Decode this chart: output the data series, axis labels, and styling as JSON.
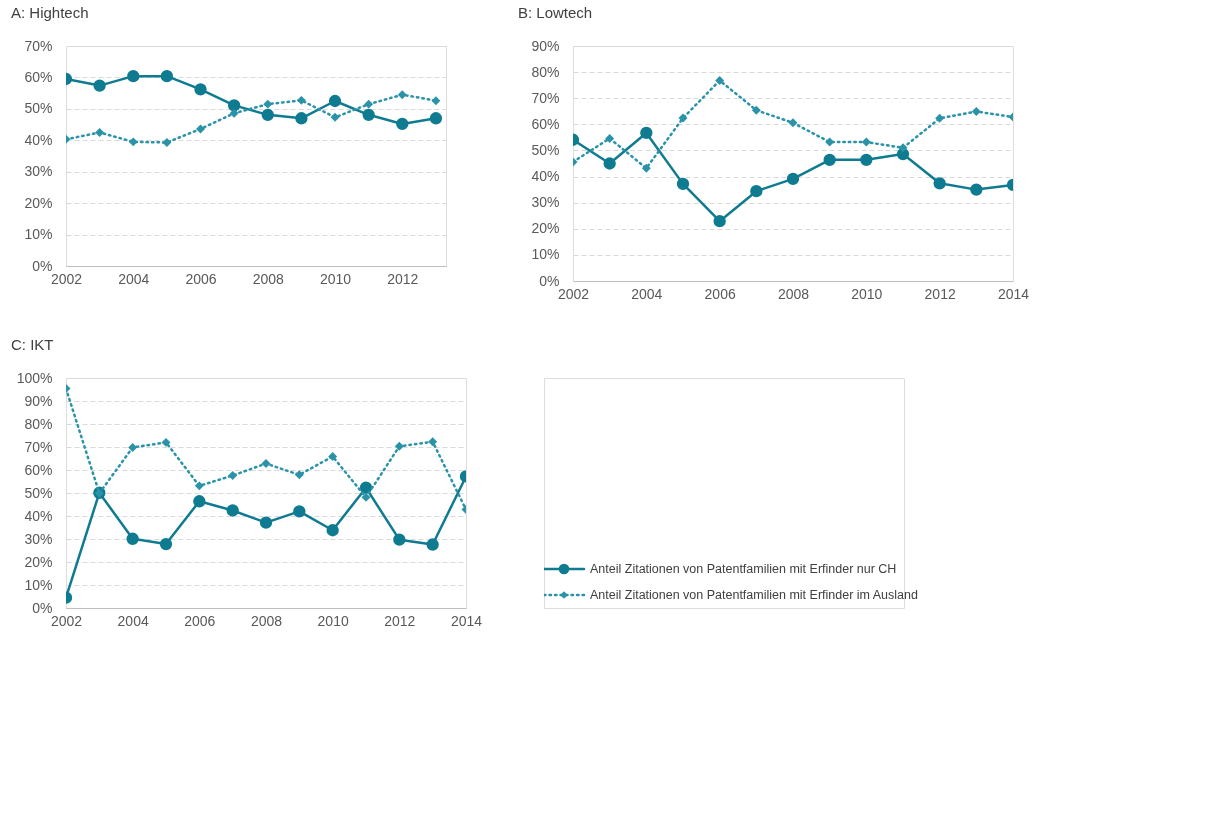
{
  "chart_data": [
    {
      "type": "line",
      "title": "A: Hightech",
      "x": [
        2002,
        2003,
        2004,
        2005,
        2006,
        2007,
        2008,
        2009,
        2010,
        2011,
        2012,
        2013
      ],
      "series": [
        {
          "name": "Anteil Zitationen von Patentfamilien mit Erfinder nur CH",
          "color": "#0f7b91",
          "marker": "circle",
          "line_style": "solid",
          "values": [
            59.5,
            57.4,
            60.4,
            60.4,
            56.2,
            51.1,
            48.1,
            47.0,
            52.5,
            48.1,
            45.2,
            47.0
          ]
        },
        {
          "name": "Anteil Zitationen von Patentfamilien mit Erfinder im Ausland",
          "color": "#2a93a8",
          "marker": "diamond",
          "line_style": "dotted",
          "values": [
            40.3,
            42.5,
            39.5,
            39.3,
            43.6,
            48.6,
            51.5,
            52.7,
            47.3,
            51.5,
            54.5,
            52.6
          ]
        }
      ],
      "xlim": [
        2002,
        2013.3
      ],
      "xticks": [
        2002,
        2004,
        2006,
        2008,
        2010,
        2012
      ],
      "ylim": [
        0,
        70
      ],
      "yticks": [
        {
          "value": 0,
          "label": "0%"
        },
        {
          "value": 10,
          "label": "10%"
        },
        {
          "value": 20,
          "label": "20%"
        },
        {
          "value": 30,
          "label": "30%"
        },
        {
          "value": 40,
          "label": "40%"
        },
        {
          "value": 50,
          "label": "50%"
        },
        {
          "value": 60,
          "label": "60%"
        },
        {
          "value": 70,
          "label": "70%"
        }
      ],
      "grid": "y",
      "legend": "bottom right"
    },
    {
      "type": "line",
      "title": "B: Lowtech",
      "x": [
        2002,
        2003,
        2004,
        2005,
        2006,
        2007,
        2008,
        2009,
        2010,
        2011,
        2012,
        2013,
        2014
      ],
      "series": [
        {
          "color": "#0f7b91",
          "marker": "circle",
          "line_style": "solid",
          "values": [
            54.1,
            45.0,
            56.7,
            37.2,
            22.9,
            34.4,
            39.1,
            46.4,
            46.4,
            48.6,
            37.4,
            35.0,
            36.8
          ]
        },
        {
          "color": "#2a93a8",
          "marker": "diamond",
          "line_style": "dotted",
          "values": [
            45.6,
            54.6,
            43.2,
            62.4,
            76.8,
            65.4,
            60.6,
            53.2,
            53.2,
            51.0,
            62.3,
            64.9,
            62.8
          ]
        }
      ],
      "xlim": [
        2002,
        2014
      ],
      "xticks": [
        2002,
        2004,
        2006,
        2008,
        2010,
        2012,
        2014
      ],
      "ylim": [
        0,
        90
      ],
      "yticks": [
        {
          "value": 0,
          "label": "0%"
        },
        {
          "value": 10,
          "label": "10%"
        },
        {
          "value": 20,
          "label": "20%"
        },
        {
          "value": 30,
          "label": "30%"
        },
        {
          "value": 40,
          "label": "40%"
        },
        {
          "value": 50,
          "label": "50%"
        },
        {
          "value": 60,
          "label": "60%"
        },
        {
          "value": 70,
          "label": "70%"
        },
        {
          "value": 80,
          "label": "80%"
        },
        {
          "value": 90,
          "label": "90%"
        }
      ],
      "grid": "y",
      "legend": false
    },
    {
      "type": "line",
      "title": "C: IKT",
      "x": [
        2002,
        2003,
        2004,
        2005,
        2006,
        2007,
        2008,
        2009,
        2010,
        2011,
        2012,
        2013,
        2014
      ],
      "series": [
        {
          "color": "#0f7b91",
          "marker": "circle",
          "line_style": "solid",
          "values": [
            4.5,
            50.1,
            30.1,
            27.8,
            46.4,
            42.4,
            37.1,
            42.0,
            33.8,
            52.3,
            29.7,
            27.6,
            57.2
          ]
        },
        {
          "color": "#2a93a8",
          "marker": "diamond",
          "line_style": "dotted",
          "values": [
            95.4,
            49.9,
            69.8,
            72.0,
            53.1,
            57.6,
            62.8,
            57.9,
            65.9,
            48.1,
            70.3,
            72.3,
            42.8
          ]
        }
      ],
      "xlim": [
        2002,
        2014
      ],
      "xticks": [
        2002,
        2004,
        2006,
        2008,
        2010,
        2012,
        2014
      ],
      "ylim": [
        0,
        100
      ],
      "yticks": [
        {
          "value": 0,
          "label": "0%"
        },
        {
          "value": 10,
          "label": "10%"
        },
        {
          "value": 20,
          "label": "20%"
        },
        {
          "value": 30,
          "label": "30%"
        },
        {
          "value": 40,
          "label": "40%"
        },
        {
          "value": 50,
          "label": "50%"
        },
        {
          "value": 60,
          "label": "60%"
        },
        {
          "value": 70,
          "label": "70%"
        },
        {
          "value": 80,
          "label": "80%"
        },
        {
          "value": 90,
          "label": "90%"
        },
        {
          "value": 100,
          "label": "100%"
        }
      ],
      "grid": "y",
      "legend": false
    }
  ]
}
